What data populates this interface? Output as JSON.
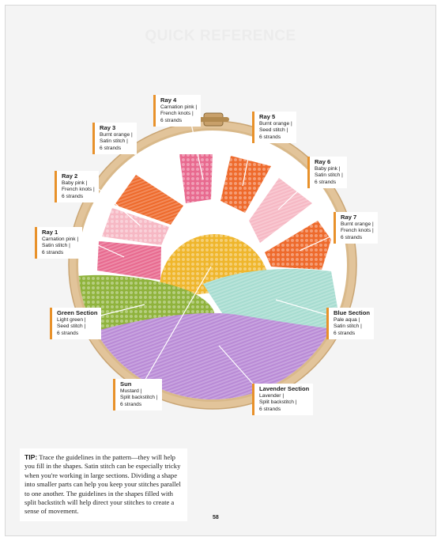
{
  "header": {
    "title": "QUICK REFERENCE"
  },
  "labels": [
    {
      "name": "Ray 1",
      "lines": [
        "Carnation pink |",
        "Satin stitch |",
        "6 strands"
      ]
    },
    {
      "name": "Ray 2",
      "lines": [
        "Baby pink |",
        "French knots |",
        "6 strands"
      ]
    },
    {
      "name": "Ray 3",
      "lines": [
        "Burnt orange |",
        "Satin stitch |",
        "6 strands"
      ]
    },
    {
      "name": "Ray 4",
      "lines": [
        "Carnation pink |",
        "French knots |",
        "6 strands"
      ]
    },
    {
      "name": "Ray 5",
      "lines": [
        "Burnt orange |",
        "Seed stitch |",
        "6 strands"
      ]
    },
    {
      "name": "Ray 6",
      "lines": [
        "Baby pink |",
        "Satin stitch |",
        "6 strands"
      ]
    },
    {
      "name": "Ray 7",
      "lines": [
        "Burnt orange |",
        "French knots |",
        "6 strands"
      ]
    },
    {
      "name": "Green Section",
      "lines": [
        "Light green |",
        "Seed stitch |",
        "6 strands"
      ]
    },
    {
      "name": "Blue Section",
      "lines": [
        "Pale aqua |",
        "Satin stitch |",
        "6 strands"
      ]
    },
    {
      "name": "Sun",
      "lines": [
        "Mustard |",
        "Split backstitch |",
        "6 strands"
      ]
    },
    {
      "name": "Lavender Section",
      "lines": [
        "Lavender |",
        "Split backstitch |",
        "6 strands"
      ]
    }
  ],
  "tip": {
    "lead": "TIP:",
    "text": "Trace the guidelines in the pattern—they will help you fill in the shapes. Satin stitch can be especially tricky when you're working in large sections. Dividing a shape into smaller parts can help you keep your stitches parallel to one another. The guidelines in the shapes filled with split backstitch will help direct your stitches to create a sense of movement."
  },
  "page_number": "58",
  "colors": {
    "accent": "#e8912a",
    "hoop_wood": "#e2c49a",
    "fabric": "#ffffff",
    "carnation_pink": "#e86a8f",
    "baby_pink": "#f6b8c4",
    "burnt_orange": "#ee6a2c",
    "mustard": "#efb62c",
    "light_green": "#8fb33c",
    "pale_aqua": "#a6dcd0",
    "lavender": "#b98ad6"
  }
}
